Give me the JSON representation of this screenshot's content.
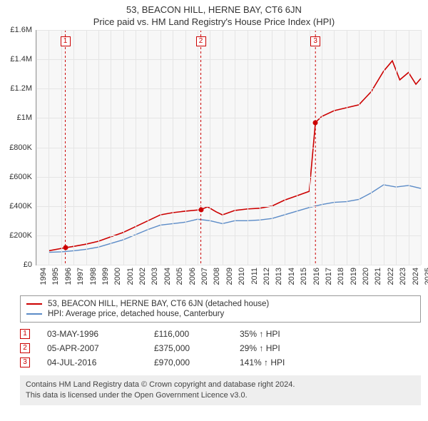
{
  "title": "53, BEACON HILL, HERNE BAY, CT6 6JN",
  "subtitle": "Price paid vs. HM Land Registry's House Price Index (HPI)",
  "chart": {
    "type": "line",
    "background_color": "#f7f7f7",
    "grid_color": "#e5e5e5",
    "axis_color": "#999999",
    "ylim_min": 0,
    "ylim_max": 1600000,
    "ytick_step": 200000,
    "yticks": [
      "£0",
      "£200K",
      "£400K",
      "£600K",
      "£800K",
      "£1M",
      "£1.2M",
      "£1.4M",
      "£1.6M"
    ],
    "xlim_min": 1994,
    "xlim_max": 2025,
    "xticks": [
      "1994",
      "1995",
      "1996",
      "1997",
      "1998",
      "1999",
      "2000",
      "2001",
      "2002",
      "2003",
      "2004",
      "2005",
      "2006",
      "2007",
      "2008",
      "2009",
      "2010",
      "2011",
      "2012",
      "2013",
      "2014",
      "2015",
      "2016",
      "2017",
      "2018",
      "2019",
      "2020",
      "2021",
      "2022",
      "2023",
      "2024",
      "2025"
    ],
    "series": [
      {
        "name": "property",
        "label": "53, BEACON HILL, HERNE BAY, CT6 6JN (detached house)",
        "color": "#cc0000",
        "line_width": 1.6,
        "points": [
          [
            1995.0,
            95000
          ],
          [
            1996.33,
            116000
          ],
          [
            1997.0,
            125000
          ],
          [
            1998.0,
            140000
          ],
          [
            1999.0,
            160000
          ],
          [
            2000.0,
            190000
          ],
          [
            2001.0,
            220000
          ],
          [
            2002.0,
            260000
          ],
          [
            2003.0,
            300000
          ],
          [
            2004.0,
            340000
          ],
          [
            2005.0,
            355000
          ],
          [
            2006.0,
            365000
          ],
          [
            2007.26,
            375000
          ],
          [
            2007.8,
            395000
          ],
          [
            2008.5,
            360000
          ],
          [
            2009.0,
            340000
          ],
          [
            2010.0,
            370000
          ],
          [
            2011.0,
            380000
          ],
          [
            2012.0,
            385000
          ],
          [
            2013.0,
            400000
          ],
          [
            2014.0,
            440000
          ],
          [
            2015.0,
            470000
          ],
          [
            2016.0,
            500000
          ],
          [
            2016.5,
            970000
          ],
          [
            2017.0,
            1010000
          ],
          [
            2018.0,
            1050000
          ],
          [
            2019.0,
            1070000
          ],
          [
            2020.0,
            1090000
          ],
          [
            2021.0,
            1180000
          ],
          [
            2022.0,
            1320000
          ],
          [
            2022.7,
            1390000
          ],
          [
            2023.3,
            1260000
          ],
          [
            2024.0,
            1310000
          ],
          [
            2024.6,
            1230000
          ],
          [
            2025.0,
            1270000
          ]
        ]
      },
      {
        "name": "hpi",
        "label": "HPI: Average price, detached house, Canterbury",
        "color": "#5b8bc7",
        "line_width": 1.4,
        "points": [
          [
            1995.0,
            85000
          ],
          [
            1996.0,
            88000
          ],
          [
            1997.0,
            95000
          ],
          [
            1998.0,
            105000
          ],
          [
            1999.0,
            120000
          ],
          [
            2000.0,
            145000
          ],
          [
            2001.0,
            170000
          ],
          [
            2002.0,
            205000
          ],
          [
            2003.0,
            240000
          ],
          [
            2004.0,
            270000
          ],
          [
            2005.0,
            280000
          ],
          [
            2006.0,
            290000
          ],
          [
            2007.0,
            310000
          ],
          [
            2008.0,
            300000
          ],
          [
            2009.0,
            280000
          ],
          [
            2010.0,
            300000
          ],
          [
            2011.0,
            300000
          ],
          [
            2012.0,
            305000
          ],
          [
            2013.0,
            315000
          ],
          [
            2014.0,
            340000
          ],
          [
            2015.0,
            365000
          ],
          [
            2016.0,
            390000
          ],
          [
            2017.0,
            410000
          ],
          [
            2018.0,
            425000
          ],
          [
            2019.0,
            430000
          ],
          [
            2020.0,
            445000
          ],
          [
            2021.0,
            490000
          ],
          [
            2022.0,
            545000
          ],
          [
            2023.0,
            530000
          ],
          [
            2024.0,
            540000
          ],
          [
            2025.0,
            520000
          ]
        ]
      }
    ],
    "markers": [
      {
        "num": "1",
        "year": 1996.33,
        "price": 116000
      },
      {
        "num": "2",
        "year": 2007.26,
        "price": 375000
      },
      {
        "num": "3",
        "year": 2016.5,
        "price": 970000
      }
    ],
    "marker_line_color": "#cc0000",
    "marker_box_border": "#cc0000",
    "marker_box_bg": "#ffffff"
  },
  "legend": {
    "items": [
      {
        "color": "#cc0000",
        "label": "53, BEACON HILL, HERNE BAY, CT6 6JN (detached house)"
      },
      {
        "color": "#5b8bc7",
        "label": "HPI: Average price, detached house, Canterbury"
      }
    ]
  },
  "transactions_table": {
    "arrow": "↑",
    "suffix": "HPI",
    "rows": [
      {
        "num": "1",
        "date": "03-MAY-1996",
        "price": "£116,000",
        "diff": "35%"
      },
      {
        "num": "2",
        "date": "05-APR-2007",
        "price": "£375,000",
        "diff": "29%"
      },
      {
        "num": "3",
        "date": "04-JUL-2016",
        "price": "£970,000",
        "diff": "141%"
      }
    ]
  },
  "footer": {
    "line1": "Contains HM Land Registry data © Crown copyright and database right 2024.",
    "line2": "This data is licensed under the Open Government Licence v3.0."
  }
}
